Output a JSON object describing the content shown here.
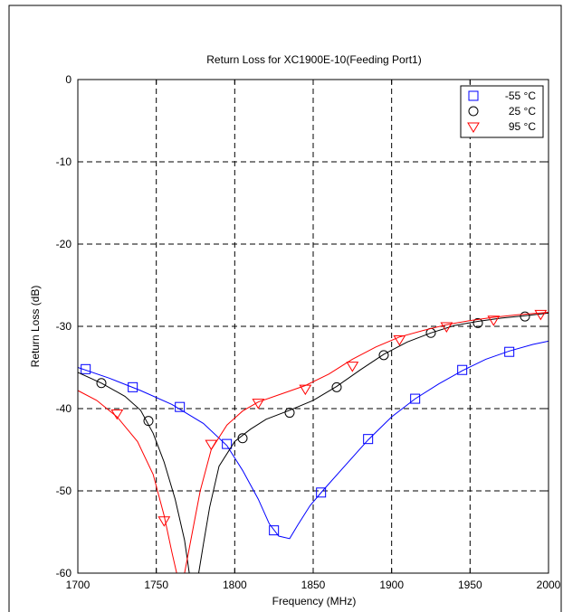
{
  "chart_data": {
    "type": "line",
    "title": "Return Loss for XC1900E-10(Feeding Port1)",
    "xlabel": "Frequency (MHz)",
    "ylabel": "Return Loss (dB)",
    "xlim": [
      1700,
      2000
    ],
    "ylim": [
      -60,
      0
    ],
    "xticks": [
      1700,
      1750,
      1800,
      1850,
      1900,
      1950,
      2000
    ],
    "yticks": [
      0,
      -10,
      -20,
      -30,
      -40,
      -50,
      -60
    ],
    "grid": true,
    "legend_position": "top-right",
    "series": [
      {
        "name": "-55 °C",
        "color": "#0000ff",
        "marker": "square",
        "line": [
          [
            1700,
            35.0
          ],
          [
            1720,
            36.3
          ],
          [
            1740,
            37.8
          ],
          [
            1760,
            39.5
          ],
          [
            1780,
            41.8
          ],
          [
            1795,
            44.5
          ],
          [
            1805,
            47.5
          ],
          [
            1815,
            51.0
          ],
          [
            1822,
            54.0
          ],
          [
            1828,
            55.5
          ],
          [
            1835,
            55.8
          ],
          [
            1840,
            54.2
          ],
          [
            1848,
            51.8
          ],
          [
            1856,
            50.0
          ],
          [
            1870,
            47.0
          ],
          [
            1885,
            43.8
          ],
          [
            1900,
            41.0
          ],
          [
            1915,
            38.8
          ],
          [
            1930,
            37.0
          ],
          [
            1945,
            35.4
          ],
          [
            1960,
            34.0
          ],
          [
            1975,
            33.0
          ],
          [
            1990,
            32.2
          ],
          [
            2000,
            31.8
          ]
        ],
        "markers": [
          [
            1705,
            35.2
          ],
          [
            1735,
            37.4
          ],
          [
            1765,
            39.8
          ],
          [
            1795,
            44.3
          ],
          [
            1825,
            54.8
          ],
          [
            1855,
            50.2
          ],
          [
            1885,
            43.7
          ],
          [
            1915,
            38.8
          ],
          [
            1945,
            35.3
          ],
          [
            1975,
            33.1
          ]
        ]
      },
      {
        "name": "25 °C",
        "color": "#000000",
        "marker": "circle",
        "line": [
          [
            1700,
            35.6
          ],
          [
            1715,
            36.9
          ],
          [
            1730,
            38.5
          ],
          [
            1740,
            40.2
          ],
          [
            1748,
            43.0
          ],
          [
            1755,
            46.5
          ],
          [
            1762,
            51.0
          ],
          [
            1768,
            56.0
          ],
          [
            1771,
            60.0
          ],
          [
            1777,
            60.0
          ],
          [
            1780,
            56.5
          ],
          [
            1784,
            52.0
          ],
          [
            1790,
            47.0
          ],
          [
            1800,
            44.0
          ],
          [
            1810,
            42.5
          ],
          [
            1820,
            41.3
          ],
          [
            1835,
            40.2
          ],
          [
            1850,
            39.0
          ],
          [
            1865,
            37.3
          ],
          [
            1880,
            35.3
          ],
          [
            1895,
            33.4
          ],
          [
            1910,
            31.9
          ],
          [
            1925,
            30.8
          ],
          [
            1940,
            29.9
          ],
          [
            1955,
            29.4
          ],
          [
            1970,
            29.0
          ],
          [
            1985,
            28.7
          ],
          [
            2000,
            28.4
          ]
        ],
        "markers": [
          [
            1715,
            36.9
          ],
          [
            1745,
            41.5
          ],
          [
            1805,
            43.6
          ],
          [
            1835,
            40.5
          ],
          [
            1865,
            37.4
          ],
          [
            1895,
            33.5
          ],
          [
            1925,
            30.8
          ],
          [
            1955,
            29.6
          ],
          [
            1985,
            28.8
          ]
        ]
      },
      {
        "name": "95 °C",
        "color": "#ff0000",
        "marker": "triangle-down",
        "line": [
          [
            1700,
            37.8
          ],
          [
            1712,
            39.0
          ],
          [
            1725,
            41.0
          ],
          [
            1738,
            44.0
          ],
          [
            1748,
            48.0
          ],
          [
            1755,
            53.0
          ],
          [
            1760,
            57.5
          ],
          [
            1763,
            60.0
          ],
          [
            1768,
            60.0
          ],
          [
            1772,
            56.0
          ],
          [
            1778,
            50.0
          ],
          [
            1785,
            45.0
          ],
          [
            1795,
            42.0
          ],
          [
            1805,
            40.3
          ],
          [
            1815,
            39.2
          ],
          [
            1830,
            38.2
          ],
          [
            1845,
            37.2
          ],
          [
            1860,
            35.8
          ],
          [
            1875,
            34.0
          ],
          [
            1890,
            32.5
          ],
          [
            1905,
            31.3
          ],
          [
            1920,
            30.5
          ],
          [
            1935,
            29.8
          ],
          [
            1950,
            29.3
          ],
          [
            1965,
            28.9
          ],
          [
            1980,
            28.6
          ],
          [
            2000,
            28.3
          ]
        ],
        "markers": [
          [
            1725,
            40.6
          ],
          [
            1755,
            53.6
          ],
          [
            1785,
            44.3
          ],
          [
            1815,
            39.3
          ],
          [
            1845,
            37.6
          ],
          [
            1875,
            34.8
          ],
          [
            1905,
            31.6
          ],
          [
            1935,
            30.0
          ],
          [
            1965,
            29.2
          ],
          [
            1995,
            28.5
          ]
        ]
      }
    ]
  }
}
